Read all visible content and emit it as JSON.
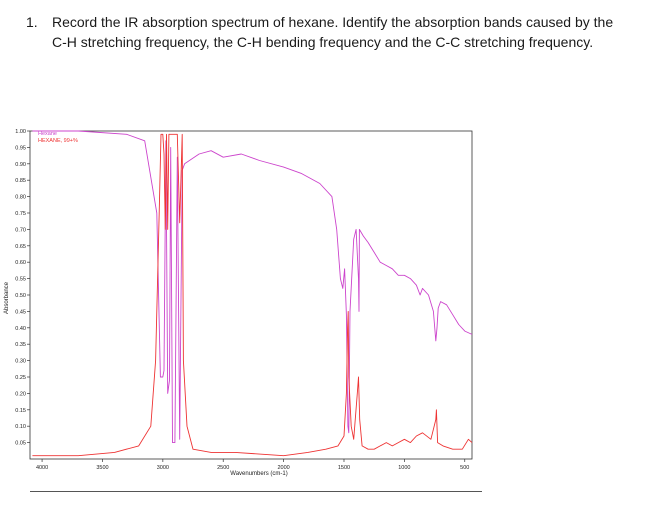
{
  "question": {
    "number": "1.",
    "text": "Record the IR absorption spectrum of hexane. Identify the absorption bands caused by the C-H stretching frequency, the C-H bending frequency and the C-C stretching frequency."
  },
  "chart_data": {
    "type": "line",
    "title": "",
    "xlabel": "Wavenumbers (cm-1)",
    "ylabel": "Absorbance",
    "xlim": [
      4100,
      440
    ],
    "ylim": [
      0.0,
      1.0
    ],
    "x_ticks": [
      4000,
      3500,
      3000,
      2500,
      2000,
      1500,
      1000,
      500
    ],
    "y_ticks": [
      "1.00",
      "0.95",
      "0.90",
      "0.85",
      "0.80",
      "0.75",
      "0.70",
      "0.65",
      "0.60",
      "0.55",
      "0.50",
      "0.45",
      "0.40",
      "0.35",
      "0.30",
      "0.25",
      "0.20",
      "0.15",
      "0.10",
      "0.05"
    ],
    "legend": [
      "Hexane",
      "HEXANE, 99+%"
    ],
    "series": [
      {
        "name": "Hexane",
        "color": "#cc44cc",
        "points": [
          [
            4080,
            1.0
          ],
          [
            3700,
            1.0
          ],
          [
            3300,
            0.99
          ],
          [
            3150,
            0.97
          ],
          [
            3050,
            0.75
          ],
          [
            3020,
            0.25
          ],
          [
            3000,
            0.25
          ],
          [
            2990,
            0.27
          ],
          [
            2975,
            0.97
          ],
          [
            2960,
            0.2
          ],
          [
            2945,
            0.24
          ],
          [
            2935,
            0.95
          ],
          [
            2920,
            0.05
          ],
          [
            2900,
            0.05
          ],
          [
            2880,
            0.92
          ],
          [
            2860,
            0.06
          ],
          [
            2840,
            0.88
          ],
          [
            2820,
            0.9
          ],
          [
            2700,
            0.93
          ],
          [
            2600,
            0.94
          ],
          [
            2500,
            0.92
          ],
          [
            2350,
            0.93
          ],
          [
            2200,
            0.91
          ],
          [
            2000,
            0.89
          ],
          [
            1850,
            0.87
          ],
          [
            1700,
            0.84
          ],
          [
            1600,
            0.8
          ],
          [
            1560,
            0.7
          ],
          [
            1530,
            0.55
          ],
          [
            1510,
            0.52
          ],
          [
            1495,
            0.58
          ],
          [
            1480,
            0.44
          ],
          [
            1468,
            0.1
          ],
          [
            1460,
            0.08
          ],
          [
            1450,
            0.45
          ],
          [
            1420,
            0.67
          ],
          [
            1400,
            0.7
          ],
          [
            1380,
            0.55
          ],
          [
            1376,
            0.45
          ],
          [
            1372,
            0.7
          ],
          [
            1340,
            0.68
          ],
          [
            1300,
            0.66
          ],
          [
            1250,
            0.63
          ],
          [
            1200,
            0.6
          ],
          [
            1150,
            0.59
          ],
          [
            1100,
            0.58
          ],
          [
            1050,
            0.56
          ],
          [
            1000,
            0.56
          ],
          [
            950,
            0.55
          ],
          [
            900,
            0.53
          ],
          [
            870,
            0.5
          ],
          [
            850,
            0.52
          ],
          [
            800,
            0.5
          ],
          [
            760,
            0.45
          ],
          [
            740,
            0.36
          ],
          [
            730,
            0.4
          ],
          [
            720,
            0.46
          ],
          [
            700,
            0.48
          ],
          [
            650,
            0.47
          ],
          [
            600,
            0.44
          ],
          [
            550,
            0.41
          ],
          [
            500,
            0.39
          ],
          [
            440,
            0.38
          ]
        ]
      },
      {
        "name": "HEXANE, 99+%",
        "color": "#ee3333",
        "points": [
          [
            4080,
            0.01
          ],
          [
            3700,
            0.01
          ],
          [
            3400,
            0.02
          ],
          [
            3200,
            0.04
          ],
          [
            3100,
            0.1
          ],
          [
            3060,
            0.3
          ],
          [
            3030,
            0.75
          ],
          [
            3015,
            0.99
          ],
          [
            3000,
            0.99
          ],
          [
            2990,
            0.93
          ],
          [
            2980,
            0.7
          ],
          [
            2970,
            0.99
          ],
          [
            2960,
            0.7
          ],
          [
            2950,
            0.99
          ],
          [
            2900,
            0.99
          ],
          [
            2880,
            0.99
          ],
          [
            2860,
            0.72
          ],
          [
            2840,
            0.99
          ],
          [
            2830,
            0.3
          ],
          [
            2800,
            0.1
          ],
          [
            2750,
            0.03
          ],
          [
            2600,
            0.02
          ],
          [
            2400,
            0.02
          ],
          [
            2000,
            0.01
          ],
          [
            1800,
            0.02
          ],
          [
            1650,
            0.03
          ],
          [
            1550,
            0.04
          ],
          [
            1500,
            0.07
          ],
          [
            1480,
            0.2
          ],
          [
            1470,
            0.4
          ],
          [
            1465,
            0.45
          ],
          [
            1460,
            0.25
          ],
          [
            1440,
            0.1
          ],
          [
            1420,
            0.06
          ],
          [
            1390,
            0.2
          ],
          [
            1380,
            0.25
          ],
          [
            1370,
            0.12
          ],
          [
            1350,
            0.04
          ],
          [
            1300,
            0.03
          ],
          [
            1250,
            0.03
          ],
          [
            1200,
            0.04
          ],
          [
            1150,
            0.05
          ],
          [
            1100,
            0.04
          ],
          [
            1050,
            0.05
          ],
          [
            1000,
            0.06
          ],
          [
            950,
            0.05
          ],
          [
            900,
            0.07
          ],
          [
            850,
            0.08
          ],
          [
            780,
            0.06
          ],
          [
            740,
            0.12
          ],
          [
            735,
            0.15
          ],
          [
            725,
            0.05
          ],
          [
            680,
            0.04
          ],
          [
            600,
            0.03
          ],
          [
            520,
            0.03
          ],
          [
            470,
            0.06
          ],
          [
            440,
            0.05
          ]
        ]
      }
    ]
  }
}
